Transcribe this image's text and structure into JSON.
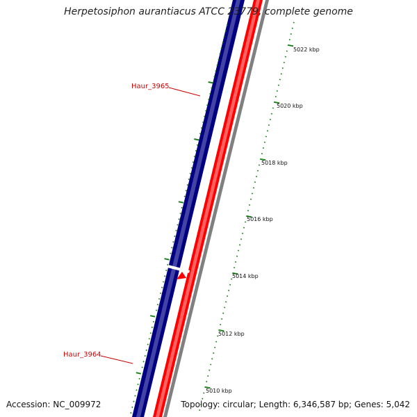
{
  "header": {
    "title": "Herpetosiphon aurantiacus ATCC 23779, complete genome"
  },
  "footer": {
    "accession": "Accession: NC_009972",
    "summary": "Topology: circular; Length: 6,346,587 bp; Genes: 5,042"
  },
  "colors": {
    "forward_strand": "#000080",
    "reverse_strand": "#ff0000",
    "backbone": "#808080",
    "ticks": "#1a7f1a",
    "gene_label": "#cc0000"
  },
  "scale": {
    "unit": "kbp",
    "labels": [
      "5022 kbp",
      "5020 kbp",
      "5018 kbp",
      "5016 kbp",
      "5014 kbp",
      "5012 kbp",
      "5010 kbp"
    ]
  },
  "genes": [
    {
      "name": "Haur_3965",
      "strand": "forward"
    },
    {
      "name": "Haur_3964",
      "strand": "forward"
    }
  ]
}
